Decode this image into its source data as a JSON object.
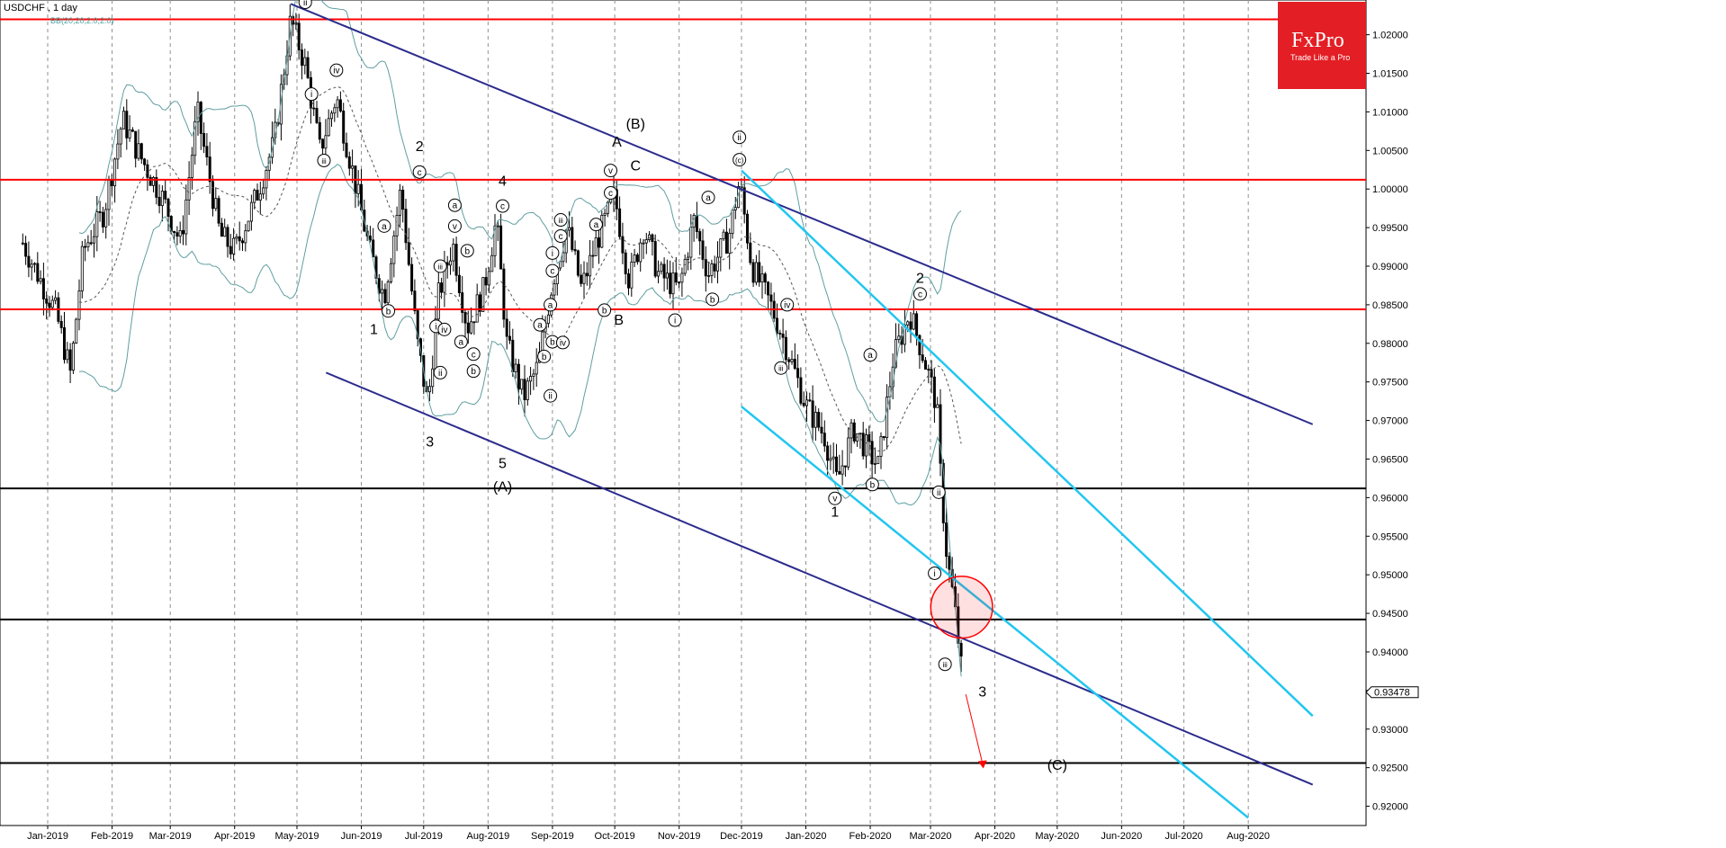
{
  "window": {
    "title": "USDCHF , 1 day",
    "indicator": "BB(20,20,2.0,2.0)"
  },
  "logo": {
    "name": "FxPro",
    "tagline": "Trade Like a Pro"
  },
  "colors": {
    "resistance": "#ff0000",
    "support": "#000000",
    "trend_channel": "#2b2b8c",
    "impulse_channel": "#22c6f0",
    "bollinger": "#5f9ea0",
    "candle": "#000000",
    "target_arrow": "#ff0000"
  },
  "chart_data": {
    "type": "candlestick",
    "symbol": "USDCHF",
    "timeframe": "1 day",
    "ylim": [
      0.9175,
      1.0245
    ],
    "x_ticks": [
      "Jan-2019",
      "Feb-2019",
      "Mar-2019",
      "Apr-2019",
      "May-2019",
      "Jun-2019",
      "Jul-2019",
      "Aug-2019",
      "Sep-2019",
      "Oct-2019",
      "Nov-2019",
      "Dec-2019",
      "Jan-2020",
      "Feb-2020",
      "Mar-2020",
      "Apr-2020",
      "May-2020",
      "Jun-2020",
      "Jul-2020",
      "Aug-2020"
    ],
    "y_ticks": [
      "1.02000",
      "1.01500",
      "1.01000",
      "1.00500",
      "1.00000",
      "0.99500",
      "0.99000",
      "0.98500",
      "0.98000",
      "0.97500",
      "0.97000",
      "0.96500",
      "0.96000",
      "0.95500",
      "0.95000",
      "0.94500",
      "0.94000",
      "0.93500",
      "0.93000",
      "0.92500",
      "0.92000"
    ],
    "current_price": "0.93478",
    "resistance_levels": [
      1.022,
      1.0012,
      0.9844
    ],
    "support_levels": [
      0.9612,
      0.9442,
      0.9256
    ],
    "trend_channel": [
      {
        "from": [
          "2019-04-28",
          1.024
        ],
        "to": [
          "2020-09-01",
          0.9695
        ]
      },
      {
        "from": [
          "2019-05-15",
          0.9762
        ],
        "to": [
          "2020-09-01",
          0.9228
        ]
      }
    ],
    "impulse_channel": [
      {
        "from": [
          "2019-12-01",
          1.0024
        ],
        "to": [
          "2020-09-01",
          0.9317
        ]
      },
      {
        "from": [
          "2019-12-01",
          0.9718
        ],
        "to": [
          "2020-08-01",
          0.9185
        ]
      }
    ],
    "price_path": [
      [
        "2018-12-20",
        0.993
      ],
      [
        "2019-01-05",
        0.984
      ],
      [
        "2019-01-12",
        0.976
      ],
      [
        "2019-01-18",
        0.992
      ],
      [
        "2019-01-28",
        0.997
      ],
      [
        "2019-02-06",
        1.009
      ],
      [
        "2019-02-15",
        1.004
      ],
      [
        "2019-02-25",
        0.999
      ],
      [
        "2019-03-06",
        0.993
      ],
      [
        "2019-03-14",
        1.01
      ],
      [
        "2019-03-25",
        0.994
      ],
      [
        "2019-04-01",
        0.992
      ],
      [
        "2019-04-10",
        0.998
      ],
      [
        "2019-04-20",
        1.006
      ],
      [
        "2019-04-28",
        1.022
      ],
      [
        "2019-05-05",
        1.016
      ],
      [
        "2019-05-12",
        1.005
      ],
      [
        "2019-05-20",
        1.012
      ],
      [
        "2019-05-28",
        1.002
      ],
      [
        "2019-06-05",
        0.992
      ],
      [
        "2019-06-12",
        0.986
      ],
      [
        "2019-06-20",
        1.0
      ],
      [
        "2019-06-28",
        0.98
      ],
      [
        "2019-07-03",
        0.972
      ],
      [
        "2019-07-08",
        0.986
      ],
      [
        "2019-07-15",
        0.993
      ],
      [
        "2019-07-22",
        0.982
      ],
      [
        "2019-07-30",
        0.987
      ],
      [
        "2019-08-05",
        0.996
      ],
      [
        "2019-08-10",
        0.98
      ],
      [
        "2019-08-18",
        0.973
      ],
      [
        "2019-08-25",
        0.977
      ],
      [
        "2019-09-01",
        0.988
      ],
      [
        "2019-09-08",
        0.995
      ],
      [
        "2019-09-15",
        0.987
      ],
      [
        "2019-09-22",
        0.993
      ],
      [
        "2019-10-01",
        0.999
      ],
      [
        "2019-10-08",
        0.988
      ],
      [
        "2019-10-15",
        0.995
      ],
      [
        "2019-10-22",
        0.989
      ],
      [
        "2019-11-01",
        0.987
      ],
      [
        "2019-11-08",
        0.996
      ],
      [
        "2019-11-15",
        0.989
      ],
      [
        "2019-11-25",
        0.994
      ],
      [
        "2019-11-30",
        1.001
      ],
      [
        "2019-12-06",
        0.99
      ],
      [
        "2019-12-15",
        0.985
      ],
      [
        "2019-12-22",
        0.98
      ],
      [
        "2020-01-01",
        0.972
      ],
      [
        "2020-01-10",
        0.968
      ],
      [
        "2020-01-16",
        0.962
      ],
      [
        "2020-01-24",
        0.969
      ],
      [
        "2020-01-31",
        0.966
      ],
      [
        "2020-02-05",
        0.964
      ],
      [
        "2020-02-12",
        0.978
      ],
      [
        "2020-02-20",
        0.984
      ],
      [
        "2020-02-27",
        0.978
      ],
      [
        "2020-03-04",
        0.972
      ],
      [
        "2020-03-06",
        0.962
      ],
      [
        "2020-03-09",
        0.952
      ],
      [
        "2020-03-12",
        0.947
      ],
      [
        "2020-03-15",
        0.94
      ],
      [
        "2020-03-17",
        0.9348
      ]
    ],
    "target_arrow": {
      "from": [
        "2020-03-18",
        0.9345
      ],
      "to": [
        "2020-03-26",
        0.9249
      ]
    },
    "highlight_circle": {
      "center": [
        "2020-03-16",
        0.9458
      ],
      "radius_price": 0.004
    },
    "wave_labels": [
      {
        "text": "2",
        "date": "2019-06-29",
        "price": 1.0055,
        "type": "plain"
      },
      {
        "text": "1",
        "date": "2019-06-07",
        "price": 0.9818,
        "type": "plain"
      },
      {
        "text": "3",
        "date": "2019-07-04",
        "price": 0.9672,
        "type": "plain"
      },
      {
        "text": "4",
        "date": "2019-08-08",
        "price": 1.001,
        "type": "plain"
      },
      {
        "text": "5",
        "date": "2019-08-08",
        "price": 0.9644,
        "type": "plain"
      },
      {
        "text": "(A)",
        "date": "2019-08-08",
        "price": 0.9614,
        "type": "plain"
      },
      {
        "text": "A",
        "date": "2019-10-02",
        "price": 1.0061,
        "type": "plain"
      },
      {
        "text": "(B)",
        "date": "2019-10-11",
        "price": 1.0084,
        "type": "plain"
      },
      {
        "text": "C",
        "date": "2019-10-11",
        "price": 1.003,
        "type": "plain"
      },
      {
        "text": "B",
        "date": "2019-10-03",
        "price": 0.983,
        "type": "plain"
      },
      {
        "text": "2",
        "date": "2020-02-25",
        "price": 0.9884,
        "type": "plain"
      },
      {
        "text": "1",
        "date": "2020-01-15",
        "price": 0.9581,
        "type": "plain"
      },
      {
        "text": "3",
        "date": "2020-03-26",
        "price": 0.9348,
        "type": "plain"
      },
      {
        "text": "(C)",
        "date": "2020-05-01",
        "price": 0.9253,
        "type": "plain"
      },
      {
        "text": "ii",
        "date": "2019-05-05",
        "price": 1.0242,
        "type": "circled"
      },
      {
        "text": "i",
        "date": "2019-05-08",
        "price": 1.0123,
        "type": "circled"
      },
      {
        "text": "iv",
        "date": "2019-05-20",
        "price": 1.0154,
        "type": "circled"
      },
      {
        "text": "iii",
        "date": "2019-05-14",
        "price": 1.0037,
        "type": "circled"
      },
      {
        "text": "c",
        "date": "2019-06-29",
        "price": 1.0022,
        "type": "circled"
      },
      {
        "text": "a",
        "date": "2019-06-12",
        "price": 0.9952,
        "type": "circled"
      },
      {
        "text": "b",
        "date": "2019-06-14",
        "price": 0.9842,
        "type": "circled"
      },
      {
        "text": "iii",
        "date": "2019-07-09",
        "price": 0.99,
        "type": "circled"
      },
      {
        "text": "i",
        "date": "2019-07-07",
        "price": 0.9822,
        "type": "circled"
      },
      {
        "text": "iv",
        "date": "2019-07-11",
        "price": 0.9818,
        "type": "circled"
      },
      {
        "text": "ii",
        "date": "2019-07-09",
        "price": 0.9762,
        "type": "circled"
      },
      {
        "text": "a",
        "date": "2019-07-16",
        "price": 0.9979,
        "type": "circled"
      },
      {
        "text": "v",
        "date": "2019-07-16",
        "price": 0.9952,
        "type": "circled"
      },
      {
        "text": "b",
        "date": "2019-07-22",
        "price": 0.992,
        "type": "circled"
      },
      {
        "text": "a",
        "date": "2019-07-19",
        "price": 0.9802,
        "type": "circled"
      },
      {
        "text": "c",
        "date": "2019-07-25",
        "price": 0.9786,
        "type": "circled"
      },
      {
        "text": "b",
        "date": "2019-07-25",
        "price": 0.9764,
        "type": "circled"
      },
      {
        "text": "c",
        "date": "2019-08-08",
        "price": 0.9978,
        "type": "circled"
      },
      {
        "text": "i",
        "date": "2019-09-01",
        "price": 0.9917,
        "type": "circled"
      },
      {
        "text": "c",
        "date": "2019-09-01",
        "price": 0.9894,
        "type": "circled"
      },
      {
        "text": "iii",
        "date": "2019-09-05",
        "price": 0.996,
        "type": "circled"
      },
      {
        "text": "c",
        "date": "2019-09-05",
        "price": 0.9939,
        "type": "circled"
      },
      {
        "text": "a",
        "date": "2019-08-31",
        "price": 0.985,
        "type": "circled"
      },
      {
        "text": "a",
        "date": "2019-08-26",
        "price": 0.9824,
        "type": "circled"
      },
      {
        "text": "b",
        "date": "2019-09-01",
        "price": 0.9802,
        "type": "circled"
      },
      {
        "text": "iv",
        "date": "2019-09-06",
        "price": 0.9801,
        "type": "circled"
      },
      {
        "text": "b",
        "date": "2019-08-28",
        "price": 0.9783,
        "type": "circled"
      },
      {
        "text": "ii",
        "date": "2019-08-31",
        "price": 0.9732,
        "type": "circled"
      },
      {
        "text": "v",
        "date": "2019-09-29",
        "price": 1.0024,
        "type": "circled"
      },
      {
        "text": "c",
        "date": "2019-09-29",
        "price": 0.9995,
        "type": "circled"
      },
      {
        "text": "a",
        "date": "2019-09-22",
        "price": 0.9954,
        "type": "circled"
      },
      {
        "text": "b",
        "date": "2019-09-26",
        "price": 0.9843,
        "type": "circled"
      },
      {
        "text": "a",
        "date": "2019-11-15",
        "price": 0.9989,
        "type": "circled"
      },
      {
        "text": "i",
        "date": "2019-10-30",
        "price": 0.983,
        "type": "circled"
      },
      {
        "text": "b",
        "date": "2019-11-17",
        "price": 0.9857,
        "type": "circled"
      },
      {
        "text": "ii",
        "date": "2019-11-30",
        "price": 1.0067,
        "type": "circled"
      },
      {
        "text": "(c)",
        "date": "2019-11-30",
        "price": 1.0038,
        "type": "circled"
      },
      {
        "text": "iv",
        "date": "2019-12-23",
        "price": 0.985,
        "type": "circled"
      },
      {
        "text": "iii",
        "date": "2019-12-20",
        "price": 0.9768,
        "type": "circled"
      },
      {
        "text": "v",
        "date": "2020-01-15",
        "price": 0.9599,
        "type": "circled"
      },
      {
        "text": "a",
        "date": "2020-02-01",
        "price": 0.9785,
        "type": "circled"
      },
      {
        "text": "b",
        "date": "2020-02-02",
        "price": 0.9617,
        "type": "circled"
      },
      {
        "text": "c",
        "date": "2020-02-25",
        "price": 0.9864,
        "type": "circled"
      },
      {
        "text": "ii",
        "date": "2020-03-05",
        "price": 0.9607,
        "type": "circled"
      },
      {
        "text": "i",
        "date": "2020-03-03",
        "price": 0.9502,
        "type": "circled"
      },
      {
        "text": "iii",
        "date": "2020-03-08",
        "price": 0.9384,
        "type": "circled"
      }
    ]
  }
}
